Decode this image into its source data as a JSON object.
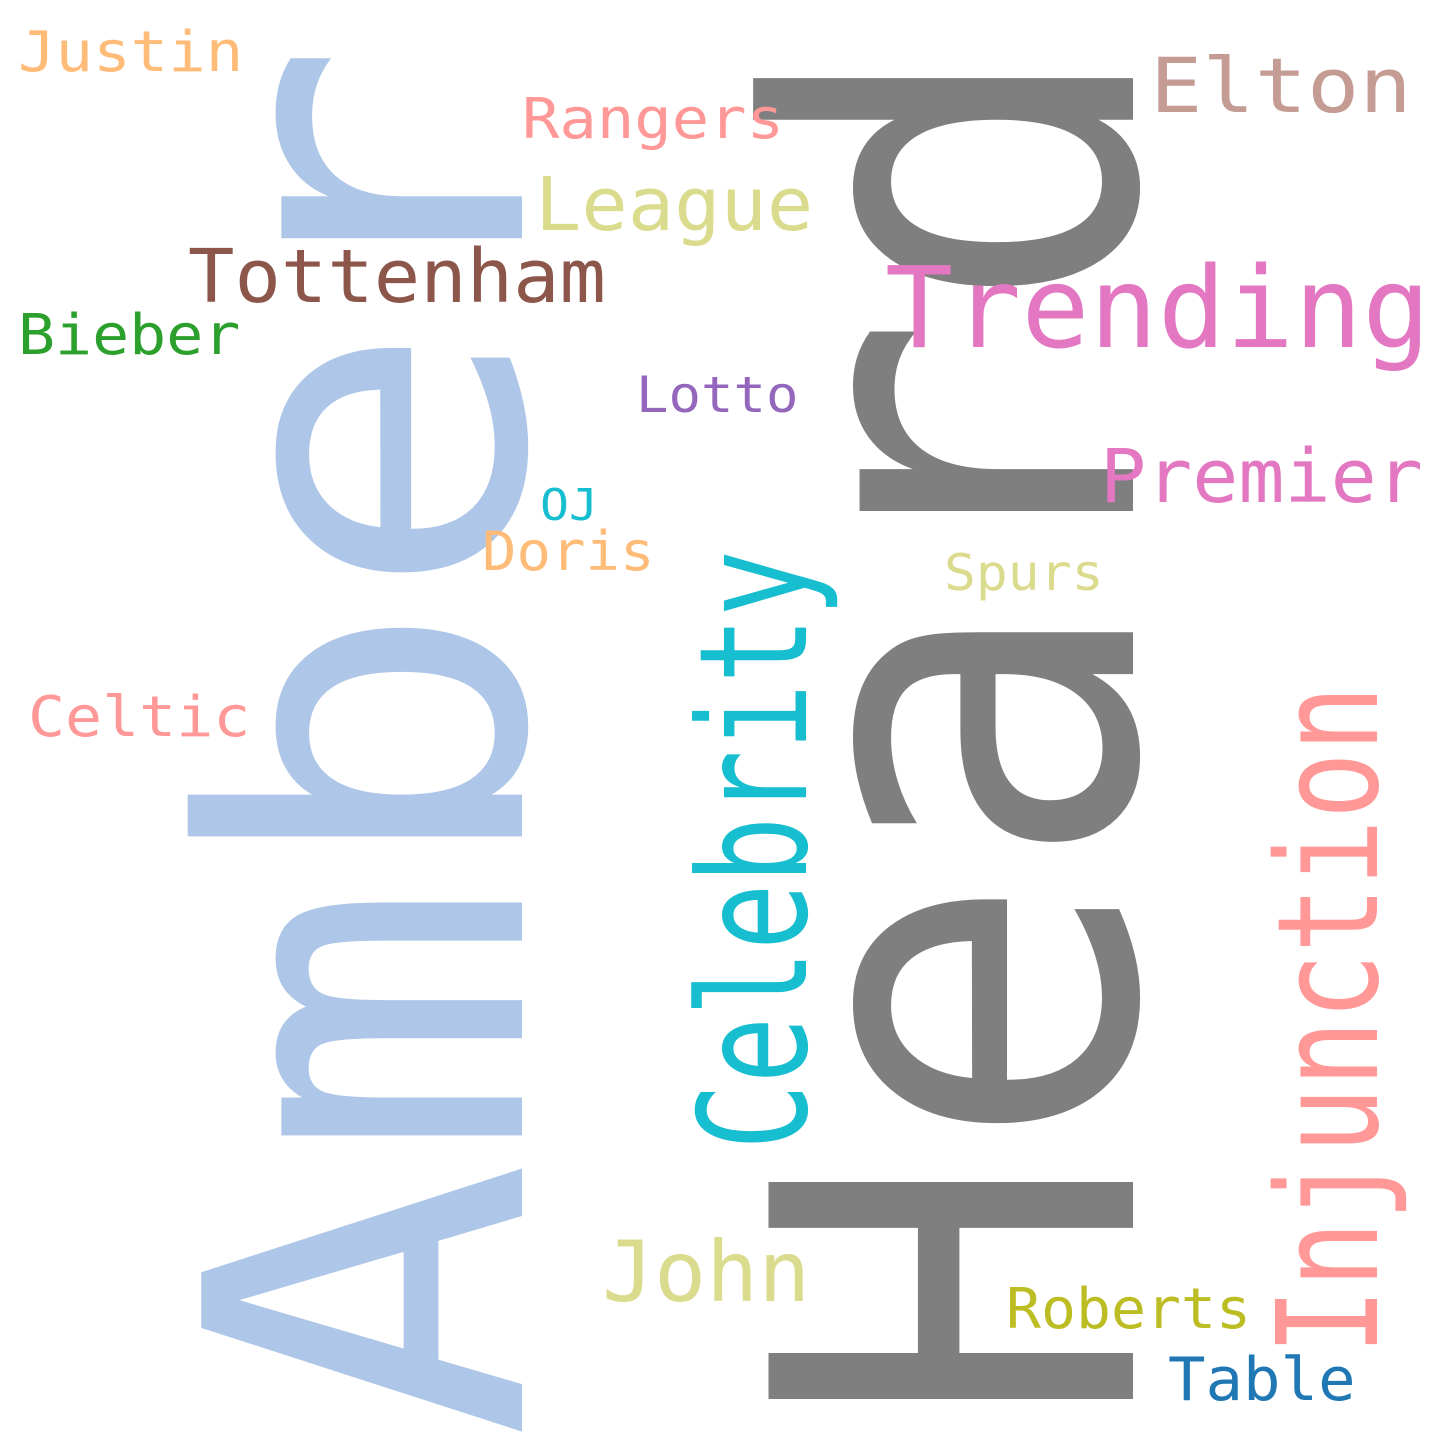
{
  "word_cloud": {
    "words": [
      {
        "text": "Amber",
        "color": "#aec7e8",
        "orientation": "vertical"
      },
      {
        "text": "Heard",
        "color": "#7f7f7f",
        "orientation": "vertical"
      },
      {
        "text": "Celebrity",
        "color": "#17becf",
        "orientation": "vertical"
      },
      {
        "text": "Injunction",
        "color": "#ff9896",
        "orientation": "vertical"
      },
      {
        "text": "Justin",
        "color": "#ffbb78",
        "orientation": "horizontal"
      },
      {
        "text": "Elton",
        "color": "#c49c94",
        "orientation": "horizontal"
      },
      {
        "text": "Rangers",
        "color": "#ff9896",
        "orientation": "horizontal"
      },
      {
        "text": "League",
        "color": "#dbdb8d",
        "orientation": "horizontal"
      },
      {
        "text": "Tottenham",
        "color": "#8c564b",
        "orientation": "horizontal"
      },
      {
        "text": "Trending",
        "color": "#e377c2",
        "orientation": "horizontal"
      },
      {
        "text": "Bieber",
        "color": "#2ca02c",
        "orientation": "horizontal"
      },
      {
        "text": "Lotto",
        "color": "#9467bd",
        "orientation": "horizontal"
      },
      {
        "text": "Premier",
        "color": "#e377c2",
        "orientation": "horizontal"
      },
      {
        "text": "OJ",
        "color": "#17becf",
        "orientation": "horizontal"
      },
      {
        "text": "Doris",
        "color": "#ffbb78",
        "orientation": "horizontal"
      },
      {
        "text": "Spurs",
        "color": "#dbdb8d",
        "orientation": "horizontal"
      },
      {
        "text": "Celtic",
        "color": "#ff9896",
        "orientation": "horizontal"
      },
      {
        "text": "John",
        "color": "#dbdb8d",
        "orientation": "horizontal"
      },
      {
        "text": "Roberts",
        "color": "#bcbd22",
        "orientation": "horizontal"
      },
      {
        "text": "Table",
        "color": "#1f77b4",
        "orientation": "horizontal"
      }
    ]
  }
}
